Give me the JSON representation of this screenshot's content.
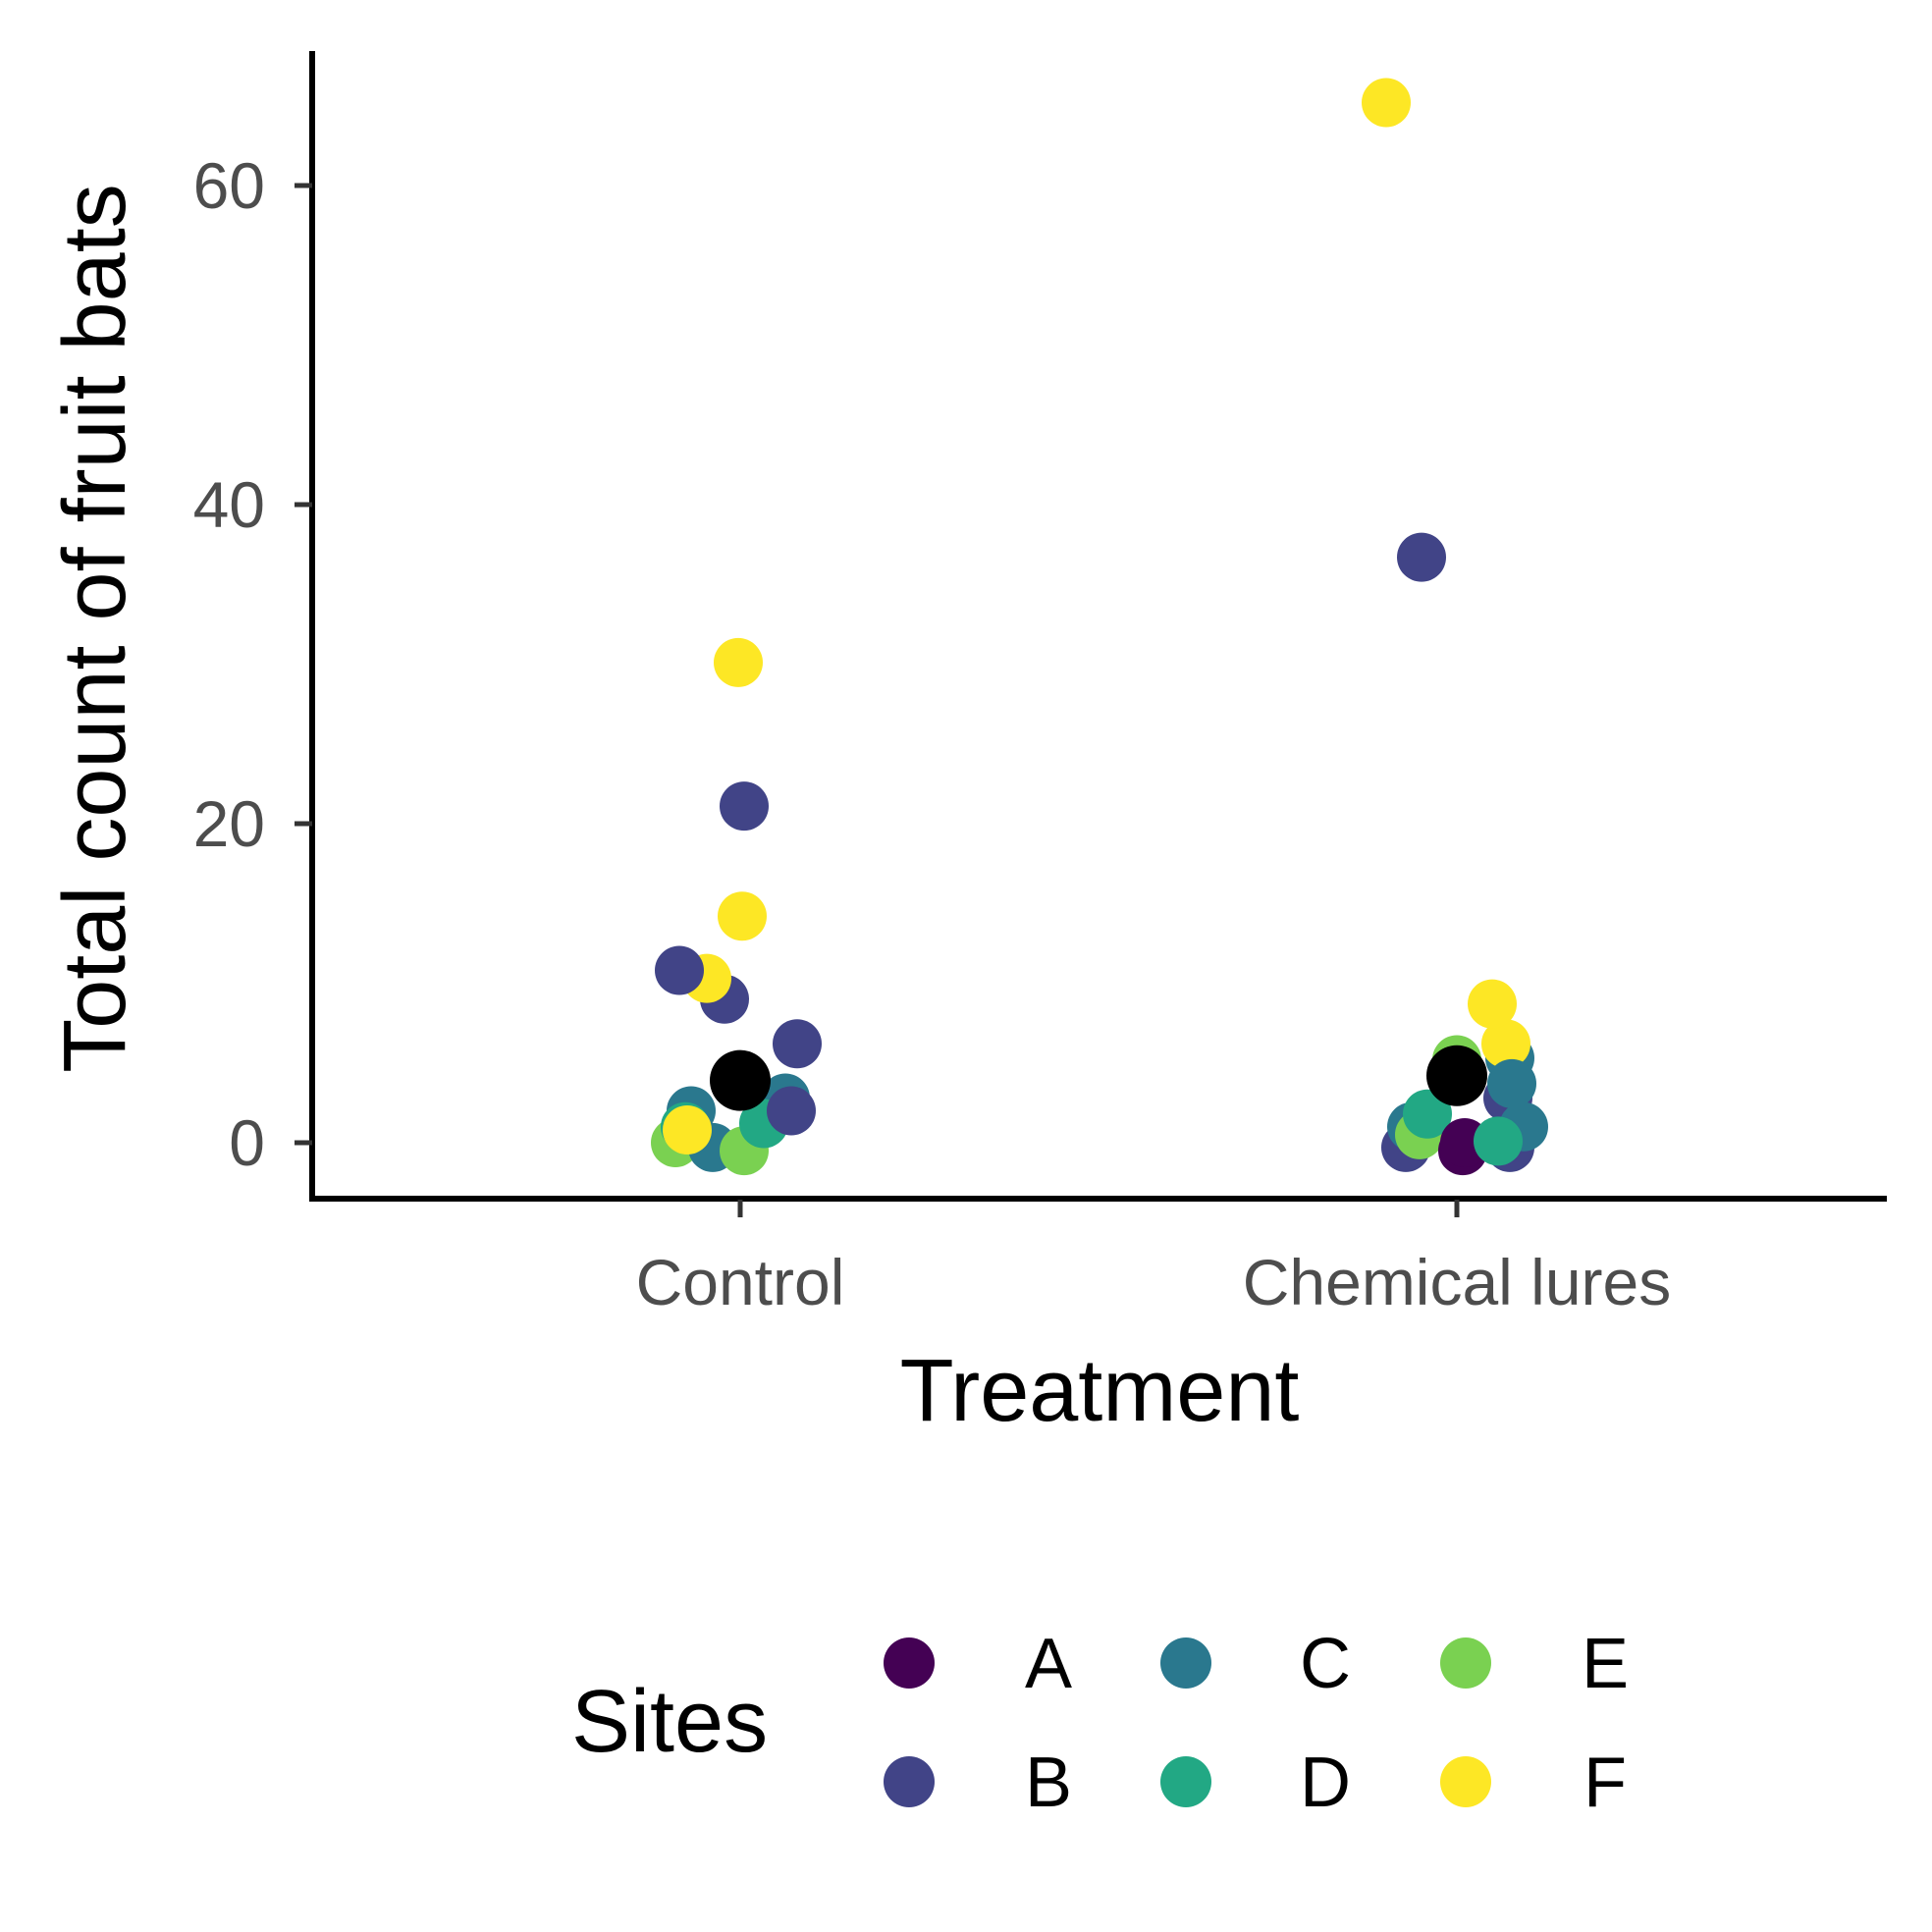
{
  "chart_data": {
    "type": "scatter",
    "xlabel": "Treatment",
    "ylabel": "Total count of fruit bats",
    "categories": [
      "Control",
      "Chemical lures"
    ],
    "ylim": [
      -3.5,
      68.5
    ],
    "yticks": [
      0,
      20,
      40,
      60
    ],
    "grid": false,
    "legend": {
      "title": "Sites",
      "placement": "bottom",
      "entries": [
        {
          "label": "A",
          "color": "#440154"
        },
        {
          "label": "B",
          "color": "#414487"
        },
        {
          "label": "C",
          "color": "#2a788e"
        },
        {
          "label": "D",
          "color": "#22a884"
        },
        {
          "label": "E",
          "color": "#7ad151"
        },
        {
          "label": "F",
          "color": "#fde725"
        }
      ]
    },
    "points": [
      {
        "site": "E",
        "category": "Control",
        "y": 0
      },
      {
        "site": "C",
        "category": "Control",
        "y": 2
      },
      {
        "site": "C",
        "category": "Control",
        "y": -0.3
      },
      {
        "site": "E",
        "category": "Control",
        "y": -0.5
      },
      {
        "site": "D",
        "category": "Control",
        "y": 1
      },
      {
        "site": "C",
        "category": "Control",
        "y": 2.8
      },
      {
        "site": "D",
        "category": "Control",
        "y": 1.2
      },
      {
        "site": "B",
        "category": "Control",
        "y": 2
      },
      {
        "site": "F",
        "category": "Control",
        "y": 0.8
      },
      {
        "site": "B",
        "category": "Control",
        "y": 6.2
      },
      {
        "site": "B",
        "category": "Control",
        "y": 9
      },
      {
        "site": "F",
        "category": "Control",
        "y": 10.3
      },
      {
        "site": "B",
        "category": "Control",
        "y": 10.8
      },
      {
        "site": "F",
        "category": "Control",
        "y": 14.2
      },
      {
        "site": "B",
        "category": "Control",
        "y": 21.1
      },
      {
        "site": "F",
        "category": "Control",
        "y": 30.1
      },
      {
        "site": "B",
        "category": "Chemical lures",
        "y": -0.3
      },
      {
        "site": "C",
        "category": "Chemical lures",
        "y": 1
      },
      {
        "site": "E",
        "category": "Chemical lures",
        "y": 0.5
      },
      {
        "site": "D",
        "category": "Chemical lures",
        "y": 1.8
      },
      {
        "site": "E",
        "category": "Chemical lures",
        "y": 5.2
      },
      {
        "site": "A",
        "category": "Chemical lures",
        "y": -0.5
      },
      {
        "site": "A",
        "category": "Chemical lures",
        "y": 0
      },
      {
        "site": "B",
        "category": "Chemical lures",
        "y": 2.8
      },
      {
        "site": "B",
        "category": "Chemical lures",
        "y": -0.3
      },
      {
        "site": "C",
        "category": "Chemical lures",
        "y": 1
      },
      {
        "site": "C",
        "category": "Chemical lures",
        "y": 5.3
      },
      {
        "site": "F",
        "category": "Chemical lures",
        "y": 6.2
      },
      {
        "site": "F",
        "category": "Chemical lures",
        "y": 8.7
      },
      {
        "site": "C",
        "category": "Chemical lures",
        "y": 3.7
      },
      {
        "site": "D",
        "category": "Chemical lures",
        "y": 0.1
      },
      {
        "site": "B",
        "category": "Chemical lures",
        "y": 36.7
      },
      {
        "site": "F",
        "category": "Chemical lures",
        "y": 65.2
      }
    ],
    "means": [
      {
        "category": "Control",
        "y": 3.9,
        "color": "#000000"
      },
      {
        "category": "Chemical lures",
        "y": 4.2,
        "color": "#000000"
      }
    ]
  }
}
